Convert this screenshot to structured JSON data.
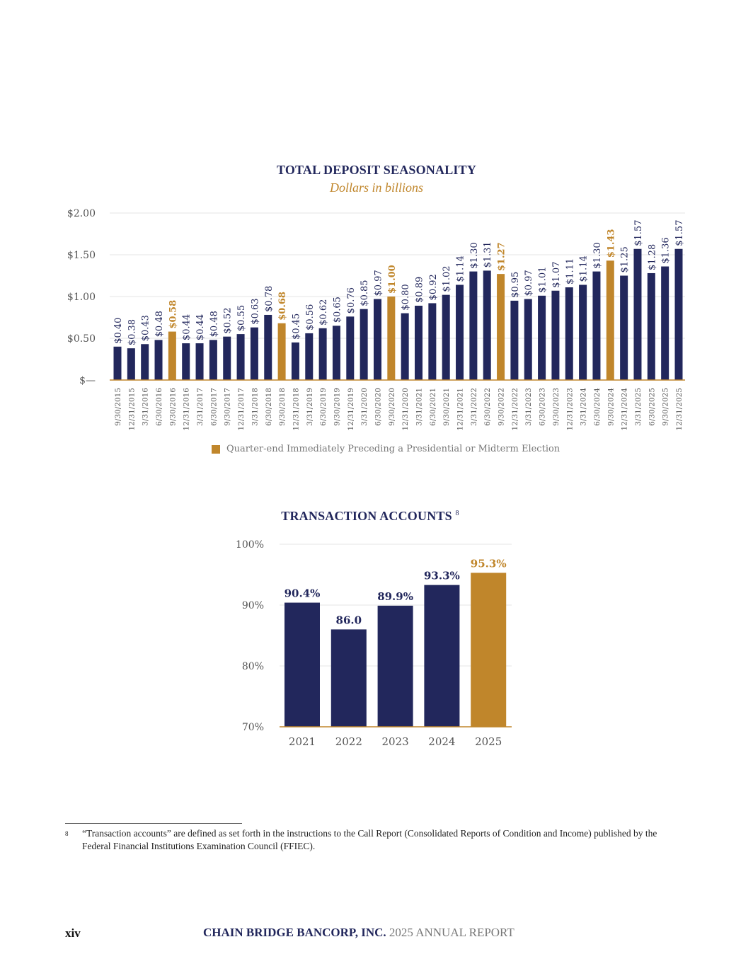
{
  "colors": {
    "primary": "#22275c",
    "highlight": "#c0862b",
    "grid": "#e6e6e6",
    "axis": "#c0862b"
  },
  "chart_data": [
    {
      "type": "bar",
      "title": "TOTAL DEPOSIT SEASONALITY",
      "subtitle": "Dollars in billions",
      "ylim": [
        0,
        2
      ],
      "yticks": [
        0,
        0.5,
        1,
        1.5,
        2
      ],
      "ytick_labels": [
        "$—",
        "$0.50",
        "$1.00",
        "$1.50",
        "$2.00"
      ],
      "grid": true,
      "legend_placement": "bottom-center",
      "legend": [
        {
          "label": "Quarter-end Immediately Preceding a Presidential or Midterm Election",
          "color": "#c0862b"
        }
      ],
      "categories": [
        "9/30/2015",
        "12/31/2015",
        "3/31/2016",
        "6/30/2016",
        "9/30/2016",
        "12/31/2016",
        "3/31/2017",
        "6/30/2017",
        "9/30/2017",
        "12/31/2017",
        "3/31/2018",
        "6/30/2018",
        "9/30/2018",
        "12/31/2018",
        "3/31/2019",
        "6/30/2019",
        "9/30/2019",
        "12/31/2019",
        "3/31/2020",
        "6/30/2020",
        "9/30/2020",
        "12/31/2020",
        "3/31/2021",
        "6/30/2021",
        "9/30/2021",
        "12/31/2021",
        "3/31/2022",
        "6/30/2022",
        "9/30/2022",
        "12/31/2022",
        "3/31/2023",
        "6/30/2023",
        "9/30/2023",
        "12/31/2023",
        "3/31/2024",
        "6/30/2024",
        "9/30/2024",
        "12/31/2024",
        "3/31/2025",
        "6/30/2025",
        "9/30/2025",
        "12/31/2025"
      ],
      "values": [
        0.4,
        0.38,
        0.43,
        0.48,
        0.58,
        0.44,
        0.44,
        0.48,
        0.52,
        0.55,
        0.63,
        0.78,
        0.68,
        0.45,
        0.56,
        0.62,
        0.65,
        0.76,
        0.85,
        0.97,
        1.0,
        0.8,
        0.89,
        0.92,
        1.02,
        1.14,
        1.3,
        1.31,
        1.27,
        0.95,
        0.97,
        1.01,
        1.07,
        1.11,
        1.14,
        1.3,
        1.43,
        1.25,
        1.57,
        1.28,
        1.36,
        1.57
      ],
      "data_labels": [
        "$0.40",
        "$0.38",
        "$0.43",
        "$0.48",
        "$0.58",
        "$0.44",
        "$0.44",
        "$0.48",
        "$0.52",
        "$0.55",
        "$0.63",
        "$0.78",
        "$0.68",
        "$0.45",
        "$0.56",
        "$0.62",
        "$0.65",
        "$0.76",
        "$0.85",
        "$0.97",
        "$1.00",
        "$0.80",
        "$0.89",
        "$0.92",
        "$1.02",
        "$1.14",
        "$1.30",
        "$1.31",
        "$1.27",
        "$0.95",
        "$0.97",
        "$1.01",
        "$1.07",
        "$1.11",
        "$1.14",
        "$1.30",
        "$1.43",
        "$1.25",
        "$1.57",
        "$1.28",
        "$1.36",
        "$1.57"
      ],
      "highlighted": [
        "9/30/2016",
        "9/30/2018",
        "9/30/2020",
        "9/30/2022",
        "9/30/2024"
      ]
    },
    {
      "type": "bar",
      "title": "TRANSACTION ACCOUNTS",
      "title_footnote": "8",
      "ylim": [
        70,
        100
      ],
      "yticks": [
        70,
        80,
        90,
        100
      ],
      "ytick_labels": [
        "70%",
        "80%",
        "90%",
        "100%"
      ],
      "grid": true,
      "categories": [
        "2021",
        "2022",
        "2023",
        "2024",
        "2025"
      ],
      "values": [
        90.4,
        86.0,
        89.9,
        93.3,
        95.3
      ],
      "data_labels": [
        "90.4%",
        "86.0",
        "89.9%",
        "93.3%",
        "95.3%"
      ],
      "highlighted": [
        "2025"
      ]
    }
  ],
  "footnote": {
    "marker": "8",
    "text": "“Transaction accounts” are defined as set forth in the instructions to the Call Report (Consolidated Reports of Condition and Income) published by the Federal Financial Institutions Examination Council (FFIEC)."
  },
  "footer": {
    "page_number": "xiv",
    "company": "CHAIN BRIDGE BANCORP, INC.",
    "report": "2025 ANNUAL REPORT"
  }
}
